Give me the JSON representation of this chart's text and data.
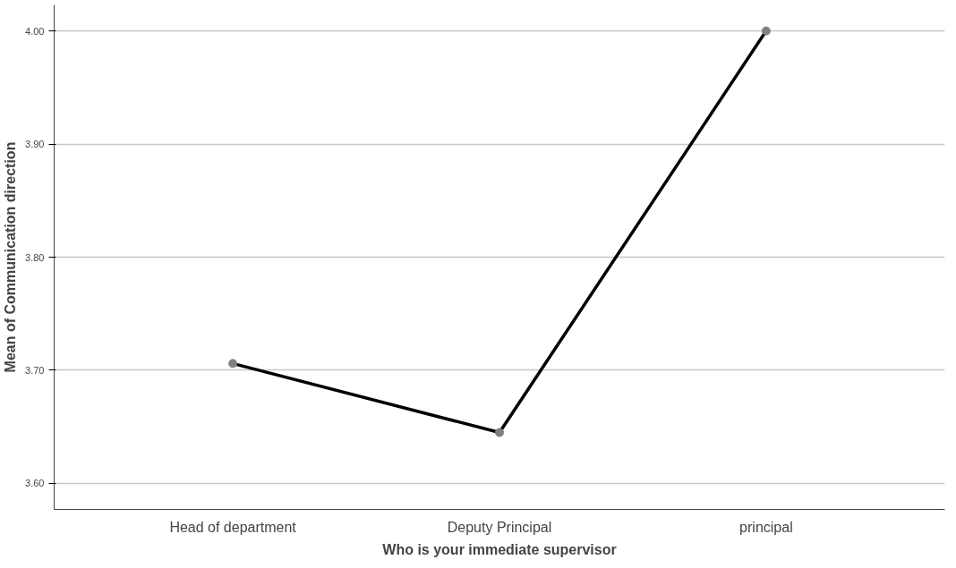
{
  "chart_data": {
    "type": "line",
    "xlabel": "Who is your immediate supervisor",
    "ylabel": "Mean of Communication direction",
    "categories": [
      "Head of department",
      "Deputy Principal",
      "principal"
    ],
    "series": [
      {
        "color": "#000000",
        "values": [
          3.706,
          3.645,
          4.0
        ]
      }
    ],
    "marker": "circle",
    "line_style": "solid",
    "ylim": [
      3.577,
      4.023
    ],
    "yticks": [
      {
        "value": 3.6,
        "label": "3.60"
      },
      {
        "value": 3.7,
        "label": "3.70"
      },
      {
        "value": 3.8,
        "label": "3.80"
      },
      {
        "value": 3.9,
        "label": "3.90"
      },
      {
        "value": 4.0,
        "label": "4.00"
      }
    ],
    "grid": "y"
  }
}
